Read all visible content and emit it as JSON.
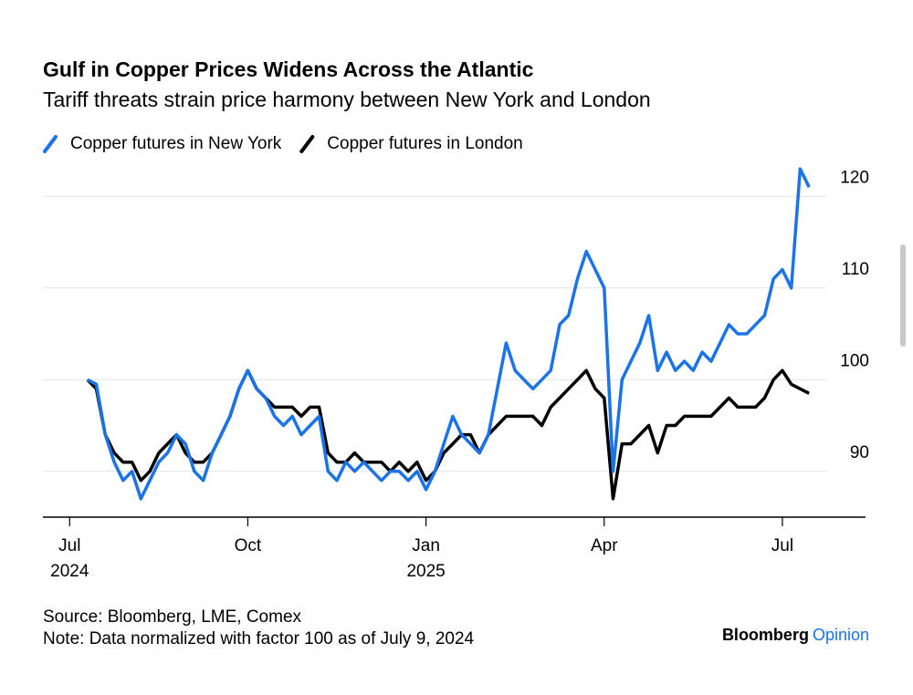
{
  "chart_data": {
    "type": "line",
    "title": "Gulf in Copper Prices Widens Across the Atlantic",
    "subtitle": "Tariff threats strain price harmony between New York and London",
    "x": [
      0.3,
      0.45,
      0.6,
      0.75,
      0.9,
      1.05,
      1.2,
      1.35,
      1.5,
      1.65,
      1.8,
      1.95,
      2.1,
      2.25,
      2.4,
      2.55,
      2.7,
      2.85,
      3,
      3.15,
      3.3,
      3.45,
      3.6,
      3.75,
      3.9,
      4.05,
      4.2,
      4.35,
      4.5,
      4.65,
      4.8,
      4.95,
      5.1,
      5.25,
      5.4,
      5.55,
      5.7,
      5.85,
      6,
      6.15,
      6.3,
      6.45,
      6.6,
      6.75,
      6.9,
      7.05,
      7.2,
      7.35,
      7.5,
      7.65,
      7.8,
      7.95,
      8.1,
      8.25,
      8.4,
      8.55,
      8.7,
      8.85,
      9,
      9.15,
      9.3,
      9.45,
      9.6,
      9.75,
      9.9,
      10.05,
      10.2,
      10.35,
      10.5,
      10.65,
      10.8,
      10.95,
      11.1,
      11.25,
      11.4,
      11.55,
      11.7,
      11.85,
      12,
      12.15,
      12.3,
      12.45
    ],
    "series": [
      {
        "name": "Copper futures in New York",
        "color": "#1a73e8",
        "values": [
          100,
          99.5,
          94,
          91,
          89,
          90,
          87,
          89,
          91,
          92,
          94,
          93,
          90,
          89,
          92,
          94,
          96,
          99,
          101,
          99,
          98,
          96,
          95,
          96,
          94,
          95,
          96,
          90,
          89,
          91,
          90,
          91,
          90,
          89,
          90,
          90,
          89,
          90,
          88,
          90,
          93,
          96,
          94,
          93,
          92,
          94,
          99,
          104,
          101,
          100,
          99,
          100,
          101,
          106,
          107,
          111,
          114,
          112,
          110,
          90,
          100,
          102,
          104,
          107,
          101,
          103,
          101,
          102,
          101,
          103,
          102,
          104,
          106,
          105,
          105,
          106,
          107,
          111,
          112,
          110,
          123,
          121
        ]
      },
      {
        "name": "Copper futures in London",
        "color": "#000000",
        "values": [
          100,
          99,
          94,
          92,
          91,
          91,
          89,
          90,
          92,
          93,
          94,
          92,
          91,
          91,
          92,
          94,
          96,
          99,
          101,
          99,
          98,
          97,
          97,
          97,
          96,
          97,
          97,
          92,
          91,
          91,
          92,
          91,
          91,
          91,
          90,
          91,
          90,
          91,
          89,
          90,
          92,
          93,
          94,
          94,
          92,
          94,
          95,
          96,
          96,
          96,
          96,
          95,
          97,
          98,
          99,
          100,
          101,
          99,
          98,
          87,
          93,
          93,
          94,
          95,
          92,
          95,
          95,
          96,
          96,
          96,
          96,
          97,
          98,
          97,
          97,
          97,
          98,
          100,
          101,
          99.5,
          99,
          98.5
        ]
      }
    ],
    "xlim": [
      -0.45,
      13.4
    ],
    "xticks": [
      {
        "value": 0,
        "label": "Jul"
      },
      {
        "value": 3,
        "label": "Oct"
      },
      {
        "value": 6,
        "label": "Jan"
      },
      {
        "value": 9,
        "label": "Apr"
      },
      {
        "value": 12,
        "label": "Jul"
      }
    ],
    "xtick_years": [
      {
        "value": 0,
        "label": "2024"
      },
      {
        "value": 6,
        "label": "2025"
      }
    ],
    "ylim": [
      85,
      125
    ],
    "yticks": [
      90,
      100,
      110,
      120
    ],
    "grid": true,
    "legend": "top-left",
    "source": "Source: Bloomberg, LME, Comex",
    "note": "Note: Data normalized with factor 100 as of July 9, 2024",
    "brand": {
      "name": "Bloomberg",
      "suffix": "Opinion"
    }
  }
}
